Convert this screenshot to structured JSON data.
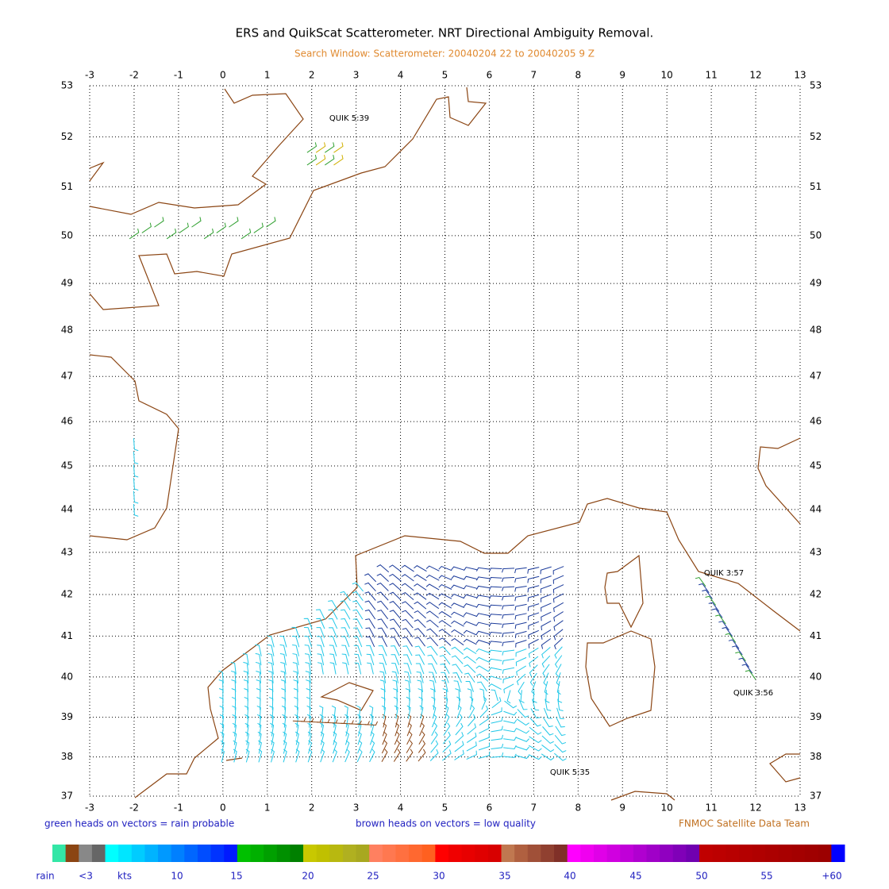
{
  "title": "ERS and QuikScat Scatterometer. NRT Directional Ambiguity Removal.",
  "subtitle": "Search Window: Scatterometer: 20040204 22 to 20040205 9 Z",
  "map": {
    "projection": "mercator",
    "xlim": [
      -3,
      13
    ],
    "ylim": [
      37,
      53
    ],
    "xticks": [
      -3,
      -2,
      -1,
      0,
      1,
      2,
      3,
      4,
      5,
      6,
      7,
      8,
      9,
      10,
      11,
      12,
      13
    ],
    "yticks": [
      37,
      38,
      39,
      40,
      41,
      42,
      43,
      44,
      45,
      46,
      47,
      48,
      49,
      50,
      51,
      52,
      53
    ],
    "grid": true,
    "coast_color": "#8b4513"
  },
  "annotations": [
    "QUIK 5:39",
    "QUIK 3:57",
    "QUIK 3:56",
    "QUIK 5:35"
  ],
  "footer": {
    "left": "green heads on vectors = rain probable",
    "center": "brown heads on vectors = low quality",
    "right": "FNMOC Satellite Data Team"
  },
  "colorbar": {
    "labels": [
      "rain",
      "<3",
      "kts",
      "10",
      "15",
      "20",
      "25",
      "30",
      "35",
      "40",
      "45",
      "50",
      "55",
      "+60"
    ],
    "colors": [
      "#33e6a6",
      "#8b4513",
      "#888888",
      "#666666",
      "#00ffff",
      "#00e6ff",
      "#00ccff",
      "#00b3ff",
      "#0099ff",
      "#0080ff",
      "#0066ff",
      "#004dff",
      "#0033ff",
      "#001aff",
      "#00c000",
      "#00b000",
      "#00a000",
      "#009000",
      "#008000",
      "#c8c800",
      "#c0c000",
      "#b8b810",
      "#b0b020",
      "#a8a820",
      "#ff8060",
      "#ff7850",
      "#ff7040",
      "#ff6830",
      "#ff6020",
      "#ff0000",
      "#f00000",
      "#e80000",
      "#e00000",
      "#d80000",
      "#c07850",
      "#b06040",
      "#a05038",
      "#904030",
      "#803028",
      "#ff00ff",
      "#f000f0",
      "#e000e8",
      "#d000e0",
      "#c000d8",
      "#b000d0",
      "#a000c8",
      "#9000c0",
      "#8000b8",
      "#7000b0",
      "#c00000",
      "#bc0000",
      "#b80000",
      "#b40000",
      "#b00000",
      "#ac0000",
      "#a80000",
      "#a40000",
      "#a00000",
      "#9c0000",
      "#0000ff"
    ]
  }
}
